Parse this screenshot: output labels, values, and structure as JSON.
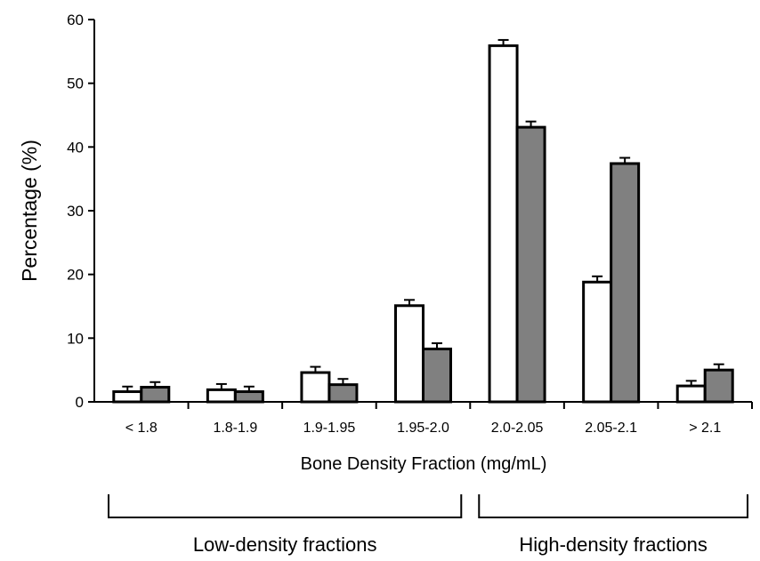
{
  "chart_data": {
    "type": "bar",
    "title": "",
    "xlabel": "Bone Density Fraction (mg/mL)",
    "ylabel": "Percentage (%)",
    "ylim": [
      0,
      60
    ],
    "yticks": [
      0,
      10,
      20,
      30,
      40,
      50,
      60
    ],
    "grid": false,
    "legend": "none",
    "categories": [
      "< 1.8",
      "1.8-1.9",
      "1.9-1.95",
      "1.95-2.0",
      "2.0-2.05",
      "2.05-2.1",
      "> 2.1"
    ],
    "series": [
      {
        "color": "#ffffff",
        "values": [
          1.6,
          1.9,
          4.6,
          15.1,
          55.9,
          18.8,
          2.5
        ],
        "errors": [
          0.8,
          0.9,
          0.9,
          0.9,
          0.9,
          0.9,
          0.8
        ]
      },
      {
        "color": "#808080",
        "values": [
          2.3,
          1.6,
          2.7,
          8.3,
          43.1,
          37.4,
          5.0
        ],
        "errors": [
          0.8,
          0.8,
          0.9,
          0.9,
          0.9,
          0.9,
          0.9
        ]
      }
    ],
    "annotations": [
      {
        "text": "Low-density fractions",
        "from_category": 0,
        "to_category": 3
      },
      {
        "text": "High-density fractions",
        "from_category": 4,
        "to_category": 6
      }
    ]
  }
}
